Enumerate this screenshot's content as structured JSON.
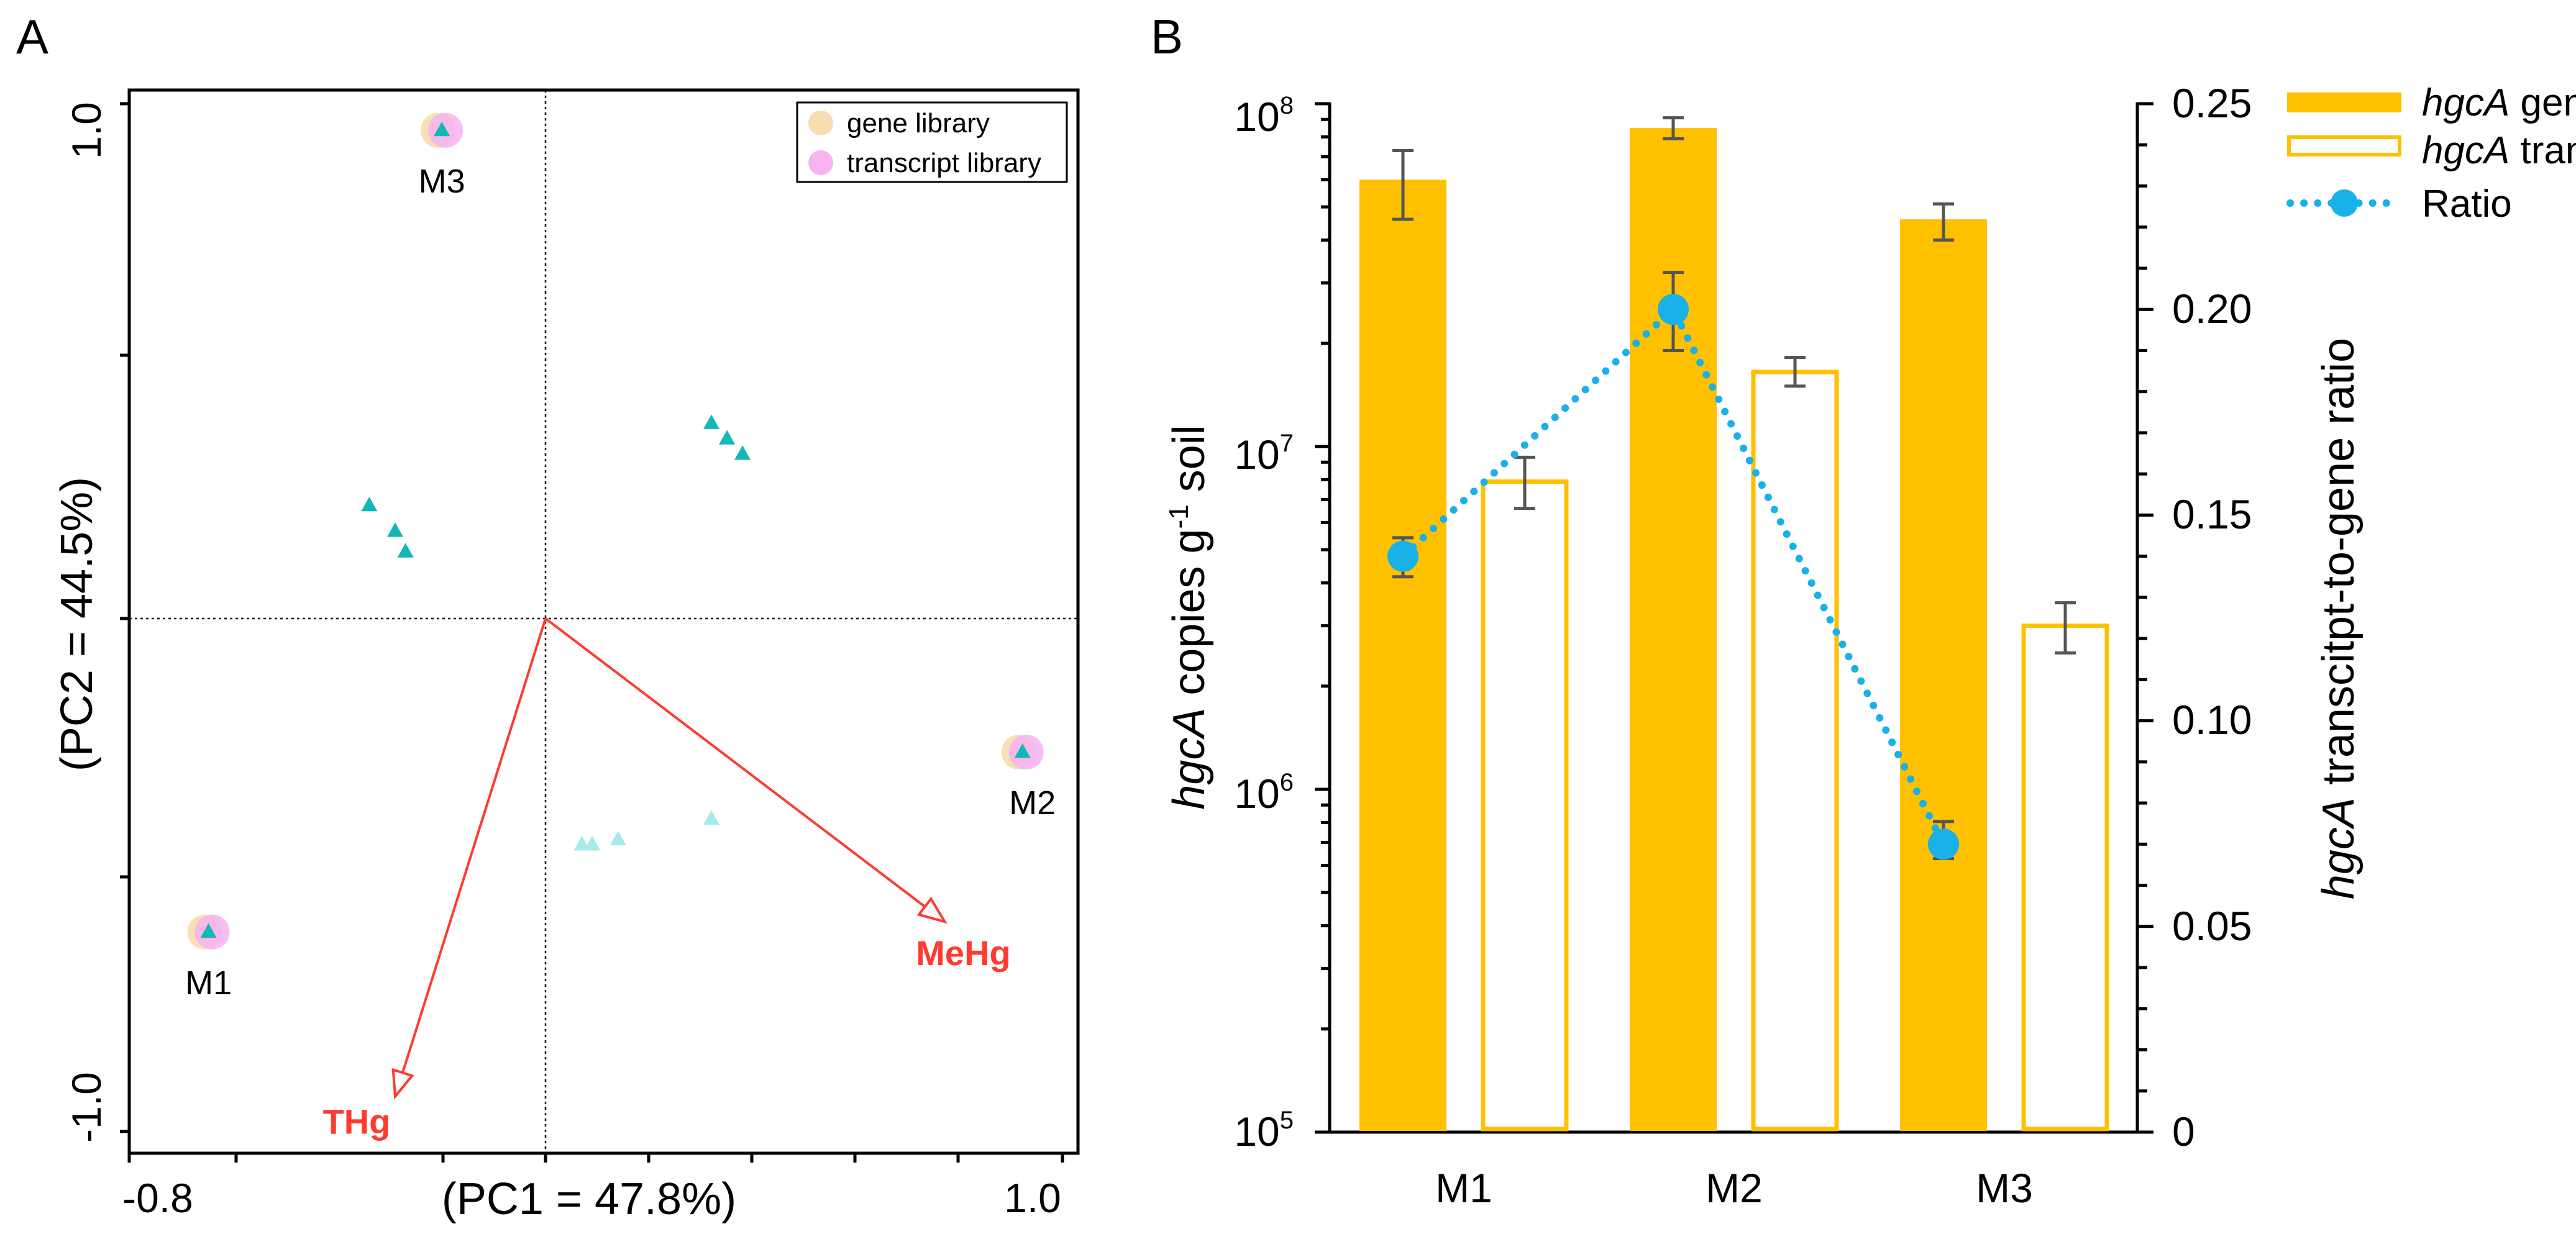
{
  "chart_data": [
    {
      "type": "scatter",
      "panel_label": "A",
      "xlabel": "(PC1 = 47.8%)",
      "ylabel": "(PC2 = 44.5%)",
      "xlim": [
        -0.8,
        1.0
      ],
      "ylim": [
        -1.0,
        1.0
      ],
      "x_tick_labels": [
        "-0.8",
        "1.0"
      ],
      "y_tick_labels": [
        "1.0",
        "-1.0"
      ],
      "legend": [
        {
          "label": "gene library",
          "color": "#f8ddb0"
        },
        {
          "label": "transcript library",
          "color": "#f7b3f0"
        }
      ],
      "sites": [
        {
          "label": "M1",
          "x": -0.65,
          "y": -0.61
        },
        {
          "label": "M2",
          "x": 0.92,
          "y": -0.26
        },
        {
          "label": "M3",
          "x": -0.2,
          "y": 0.95
        }
      ],
      "otu_points_dark": [
        {
          "x": -0.34,
          "y": 0.22
        },
        {
          "x": -0.29,
          "y": 0.17
        },
        {
          "x": -0.27,
          "y": 0.13
        },
        {
          "x": 0.32,
          "y": 0.38
        },
        {
          "x": 0.35,
          "y": 0.35
        },
        {
          "x": 0.38,
          "y": 0.32
        }
      ],
      "otu_points_light": [
        {
          "x": 0.07,
          "y": -0.44
        },
        {
          "x": 0.09,
          "y": -0.44
        },
        {
          "x": 0.14,
          "y": -0.43
        },
        {
          "x": 0.32,
          "y": -0.39
        }
      ],
      "vectors": [
        {
          "label": "MeHg",
          "x": 0.77,
          "y": -0.59
        },
        {
          "label": "THg",
          "x": -0.29,
          "y": -0.93
        }
      ],
      "colors": {
        "arrow": "#ff3b30",
        "point_dark": "#10b8b8",
        "point_light": "#a6eaea"
      }
    },
    {
      "type": "bar",
      "panel_label": "B",
      "categories": [
        "M1",
        "M2",
        "M3"
      ],
      "ylabel_italic": "hgcA",
      "ylabel_rest": " copies g",
      "ylabel_sup": "-1",
      "ylabel_end": " soil",
      "y_scale": "log",
      "ylim": [
        100000,
        100000000
      ],
      "y_tick_base": "10",
      "y_tick_exponents": [
        "5",
        "6",
        "7",
        "8"
      ],
      "y2label_italic": "hgcA",
      "y2label_rest": " transcitpt-to-gene ratio",
      "y2lim": [
        0,
        0.25
      ],
      "y2_tick_labels": [
        "0",
        "0.05",
        "0.10",
        "0.15",
        "0.20",
        "0.25"
      ],
      "series": [
        {
          "name": "hgcA gene",
          "legend_italic": "hgcA",
          "legend_rest": " gene",
          "values": [
            60000000,
            85000000,
            46000000
          ],
          "err_low": [
            46000000,
            79000000,
            40000000
          ],
          "err_high": [
            73000000,
            91000000,
            51000000
          ]
        },
        {
          "name": "hgcA trans",
          "legend_italic": "hgcA",
          "legend_rest": " trans",
          "values": [
            7900000,
            16500000,
            3000000
          ],
          "err_low": [
            6600000,
            15000000,
            2500000
          ],
          "err_high": [
            9300000,
            18200000,
            3500000
          ]
        },
        {
          "name": "Ratio",
          "legend_italic": "",
          "legend_rest": "Ratio",
          "axis": "right",
          "values": [
            0.14,
            0.2,
            0.07
          ],
          "err_low": [
            0.135,
            0.19,
            0.0665
          ],
          "err_high": [
            0.1445,
            0.209,
            0.0755
          ]
        }
      ],
      "colors": {
        "gene": "#ffc000",
        "trans": "#ffc000",
        "ratio": "#1ab0e8",
        "error": "#555555"
      }
    }
  ]
}
